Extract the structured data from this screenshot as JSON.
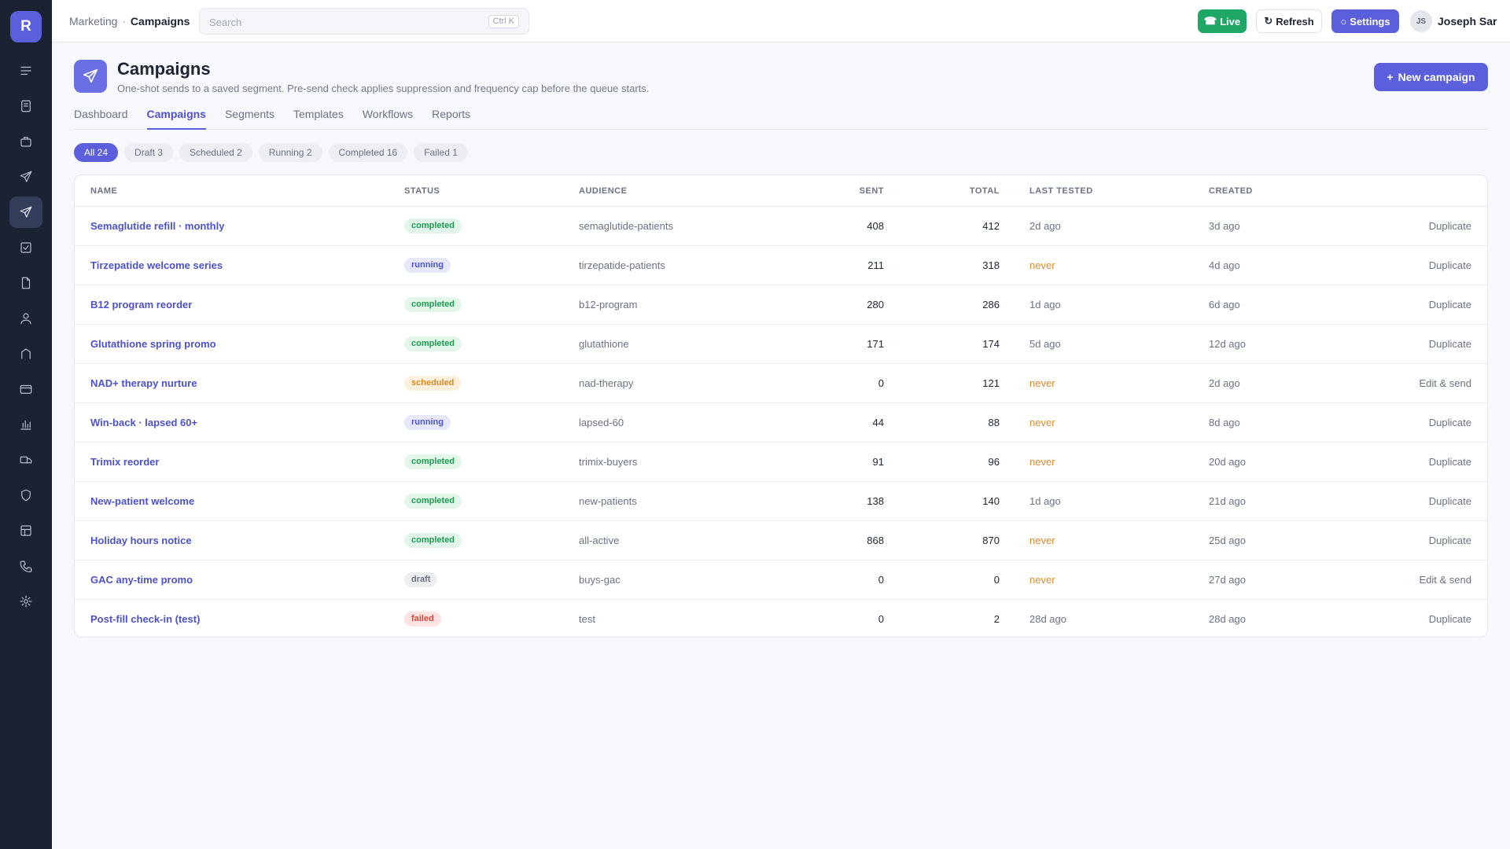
{
  "app": {
    "logo_letter": "R"
  },
  "sidebar": {
    "items": [
      {
        "icon": "menu-icon"
      },
      {
        "icon": "document-icon"
      },
      {
        "icon": "briefcase-icon"
      },
      {
        "icon": "send-icon"
      },
      {
        "icon": "send-icon",
        "active": true
      },
      {
        "icon": "checkbox-icon"
      },
      {
        "icon": "file-icon"
      },
      {
        "icon": "user-icon"
      },
      {
        "icon": "arch-icon"
      },
      {
        "icon": "credit-card-icon"
      },
      {
        "icon": "bar-chart-icon"
      },
      {
        "icon": "truck-icon"
      },
      {
        "icon": "shield-icon"
      },
      {
        "icon": "grid-icon"
      },
      {
        "icon": "phone-icon"
      },
      {
        "icon": "gear-icon"
      }
    ]
  },
  "topbar": {
    "breadcrumb": {
      "parent": "Marketing",
      "separator": "·",
      "current": "Campaigns"
    },
    "search": {
      "placeholder": "Search",
      "shortcut": "Ctrl K"
    },
    "live_label": "Live",
    "refresh_label": "Refresh",
    "settings_label": "Settings",
    "user": {
      "initials": "JS",
      "name": "Joseph Sar"
    }
  },
  "page": {
    "title": "Campaigns",
    "subtitle": "One-shot sends to a saved segment. Pre-send check applies suppression and frequency cap before the queue starts.",
    "new_button": "New campaign"
  },
  "tabs": [
    "Dashboard",
    "Campaigns",
    "Segments",
    "Templates",
    "Workflows",
    "Reports"
  ],
  "active_tab": "Campaigns",
  "filters": [
    "All 24",
    "Draft 3",
    "Scheduled 2",
    "Running 2",
    "Completed 16",
    "Failed 1"
  ],
  "table": {
    "headers": {
      "name": "NAME",
      "status": "STATUS",
      "audience": "AUDIENCE",
      "sent": "SENT",
      "total": "TOTAL",
      "last_tested": "LAST TESTED",
      "created": "CREATED"
    },
    "rows": [
      {
        "name": "Semaglutide refill · monthly",
        "status": "completed",
        "audience": "semaglutide-patients",
        "sent": "408",
        "total": "412",
        "last_tested": "2d ago",
        "created": "3d ago",
        "action": "Duplicate"
      },
      {
        "name": "Tirzepatide welcome series",
        "status": "running",
        "audience": "tirzepatide-patients",
        "sent": "211",
        "total": "318",
        "last_tested": "never",
        "created": "4d ago",
        "action": "Duplicate"
      },
      {
        "name": "B12 program reorder",
        "status": "completed",
        "audience": "b12-program",
        "sent": "280",
        "total": "286",
        "last_tested": "1d ago",
        "created": "6d ago",
        "action": "Duplicate"
      },
      {
        "name": "Glutathione spring promo",
        "status": "completed",
        "audience": "glutathione",
        "sent": "171",
        "total": "174",
        "last_tested": "5d ago",
        "created": "12d ago",
        "action": "Duplicate"
      },
      {
        "name": "NAD+ therapy nurture",
        "status": "scheduled",
        "audience": "nad-therapy",
        "sent": "0",
        "total": "121",
        "last_tested": "never",
        "created": "2d ago",
        "action": "Edit & send"
      },
      {
        "name": "Win-back · lapsed 60+",
        "status": "running",
        "audience": "lapsed-60",
        "sent": "44",
        "total": "88",
        "last_tested": "never",
        "created": "8d ago",
        "action": "Duplicate"
      },
      {
        "name": "Trimix reorder",
        "status": "completed",
        "audience": "trimix-buyers",
        "sent": "91",
        "total": "96",
        "last_tested": "never",
        "created": "20d ago",
        "action": "Duplicate"
      },
      {
        "name": "New-patient welcome",
        "status": "completed",
        "audience": "new-patients",
        "sent": "138",
        "total": "140",
        "last_tested": "1d ago",
        "created": "21d ago",
        "action": "Duplicate"
      },
      {
        "name": "Holiday hours notice",
        "status": "completed",
        "audience": "all-active",
        "sent": "868",
        "total": "870",
        "last_tested": "never",
        "created": "25d ago",
        "action": "Duplicate"
      },
      {
        "name": "GAC any-time promo",
        "status": "draft",
        "audience": "buys-gac",
        "sent": "0",
        "total": "0",
        "last_tested": "never",
        "created": "27d ago",
        "action": "Edit & send"
      },
      {
        "name": "Post-fill check-in (test)",
        "status": "failed",
        "audience": "test",
        "sent": "0",
        "total": "2",
        "last_tested": "28d ago",
        "created": "28d ago",
        "action": "Duplicate"
      }
    ]
  },
  "colors": {
    "accent": "#5b5fdc",
    "sidebar_bg": "#1b2232",
    "live_green": "#1fa766",
    "never_orange": "#e0892a"
  }
}
